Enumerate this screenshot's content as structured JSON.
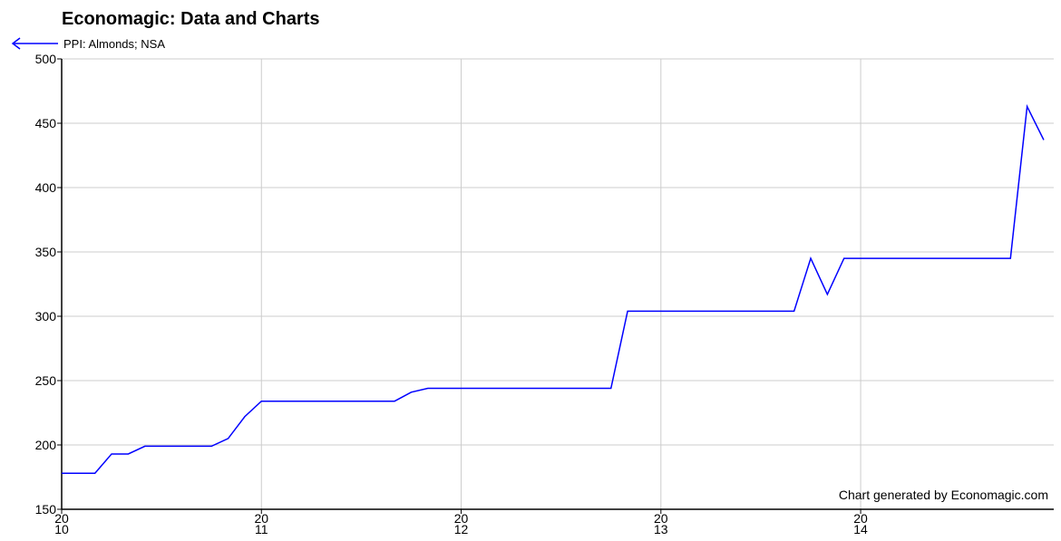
{
  "chart_data": {
    "type": "line",
    "title": "Economagic: Data and Charts",
    "annotation": "Chart generated by Economagic.com",
    "categories": [
      "20\n10",
      null,
      null,
      null,
      null,
      null,
      null,
      null,
      null,
      null,
      null,
      null,
      "20\n11",
      null,
      null,
      null,
      null,
      null,
      null,
      null,
      null,
      null,
      null,
      null,
      "20\n12",
      null,
      null,
      null,
      null,
      null,
      null,
      null,
      null,
      null,
      null,
      null,
      "20\n13",
      null,
      null,
      null,
      null,
      null,
      null,
      null,
      null,
      null,
      null,
      null,
      "20\n14",
      null,
      null,
      null,
      null,
      null,
      null,
      null,
      null,
      null,
      null,
      null
    ],
    "series": [
      {
        "name": "PPI: Almonds; NSA",
        "color": "#0000ff",
        "values": [
          178,
          178,
          178,
          193,
          193,
          199,
          199,
          199,
          199,
          199,
          205,
          222,
          234,
          234,
          234,
          234,
          234,
          234,
          234,
          234,
          234,
          241,
          244,
          244,
          244,
          244,
          244,
          244,
          244,
          244,
          244,
          244,
          244,
          244,
          304,
          304,
          304,
          304,
          304,
          304,
          304,
          304,
          304,
          304,
          304,
          345,
          317,
          345,
          345,
          345,
          345,
          345,
          345,
          345,
          345,
          345,
          345,
          345,
          463,
          437
        ]
      }
    ],
    "ylim": [
      150,
      500
    ],
    "yticks": [
      150,
      200,
      250,
      300,
      350,
      400,
      450,
      500
    ],
    "grid": true
  }
}
